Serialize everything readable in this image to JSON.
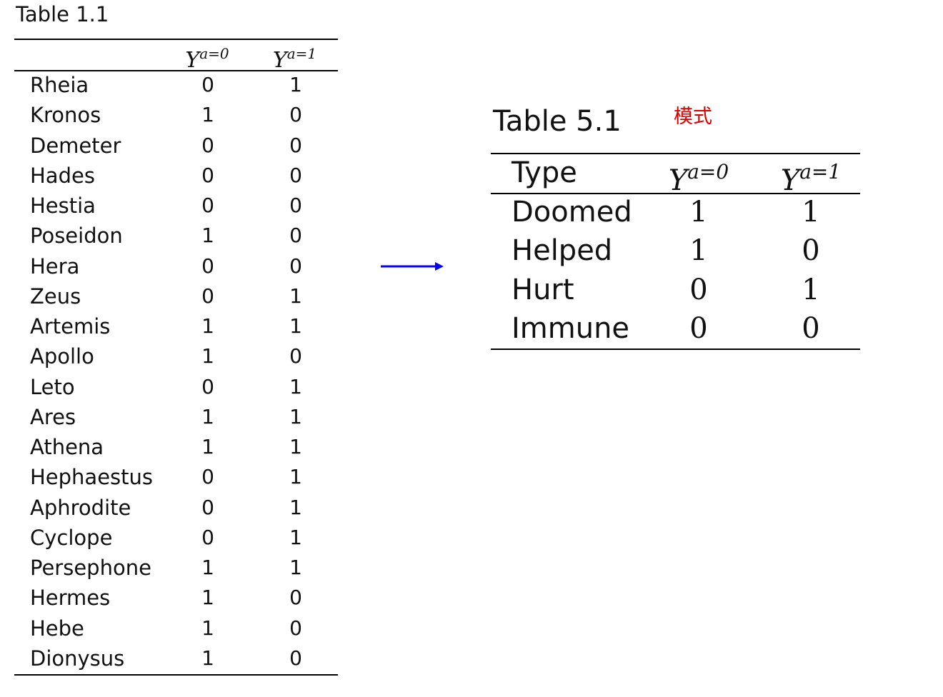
{
  "table1": {
    "title": "Table 1.1",
    "col_base": "Y",
    "col1_sup": "a=0",
    "col2_sup": "a=1",
    "rows": [
      {
        "name": "Rheia",
        "y0": "0",
        "y1": "1"
      },
      {
        "name": "Kronos",
        "y0": "1",
        "y1": "0"
      },
      {
        "name": "Demeter",
        "y0": "0",
        "y1": "0"
      },
      {
        "name": "Hades",
        "y0": "0",
        "y1": "0"
      },
      {
        "name": "Hestia",
        "y0": "0",
        "y1": "0"
      },
      {
        "name": "Poseidon",
        "y0": "1",
        "y1": "0"
      },
      {
        "name": "Hera",
        "y0": "0",
        "y1": "0"
      },
      {
        "name": "Zeus",
        "y0": "0",
        "y1": "1"
      },
      {
        "name": "Artemis",
        "y0": "1",
        "y1": "1"
      },
      {
        "name": "Apollo",
        "y0": "1",
        "y1": "0"
      },
      {
        "name": "Leto",
        "y0": "0",
        "y1": "1"
      },
      {
        "name": "Ares",
        "y0": "1",
        "y1": "1"
      },
      {
        "name": "Athena",
        "y0": "1",
        "y1": "1"
      },
      {
        "name": "Hephaestus",
        "y0": "0",
        "y1": "1"
      },
      {
        "name": "Aphrodite",
        "y0": "0",
        "y1": "1"
      },
      {
        "name": "Cyclope",
        "y0": "0",
        "y1": "1"
      },
      {
        "name": "Persephone",
        "y0": "1",
        "y1": "1"
      },
      {
        "name": "Hermes",
        "y0": "1",
        "y1": "0"
      },
      {
        "name": "Hebe",
        "y0": "1",
        "y1": "0"
      },
      {
        "name": "Dionysus",
        "y0": "1",
        "y1": "0"
      }
    ]
  },
  "arrow": {
    "icon": "arrow-right-icon",
    "color": "#0000ff"
  },
  "table2": {
    "title": "Table 5.1",
    "note": "模式",
    "note_color": "#dd0000",
    "type_label": "Type",
    "col_base": "Y",
    "col1_sup": "a=0",
    "col2_sup": "a=1",
    "rows": [
      {
        "name": "Doomed",
        "y0": "1",
        "y1": "1"
      },
      {
        "name": "Helped",
        "y0": "1",
        "y1": "0"
      },
      {
        "name": "Hurt",
        "y0": "0",
        "y1": "1"
      },
      {
        "name": "Immune",
        "y0": "0",
        "y1": "0"
      }
    ]
  }
}
